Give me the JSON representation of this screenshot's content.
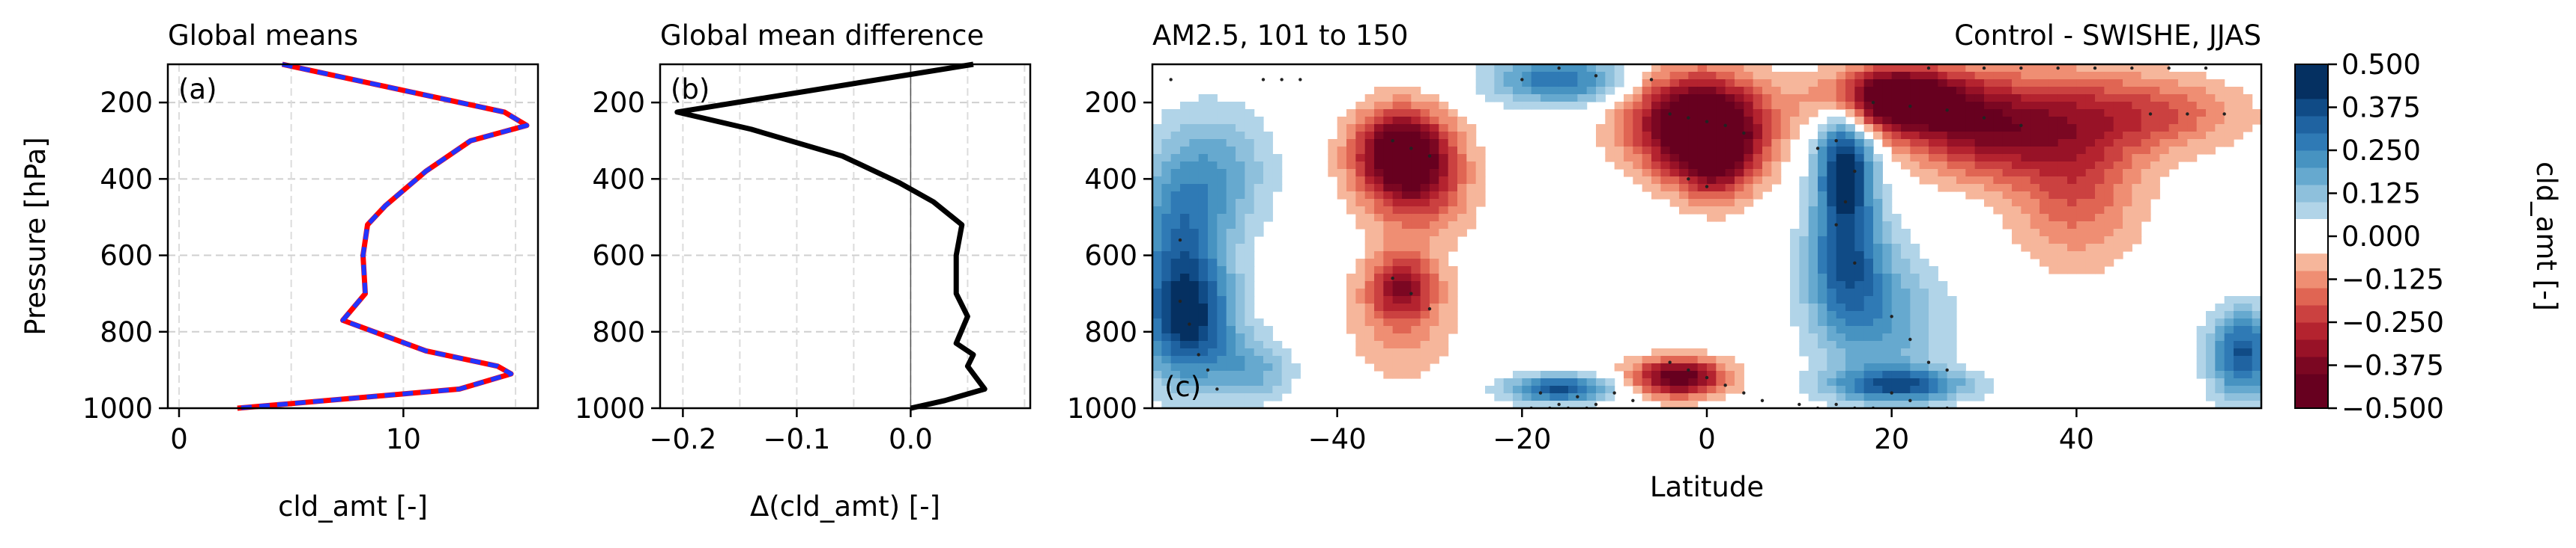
{
  "chart_data": [
    {
      "id": "a",
      "type": "line",
      "title": "Global means",
      "panel_label": "(a)",
      "xlabel": "cld_amt [-]",
      "ylabel": "Pressure [hPa]",
      "xlim": [
        -0.5,
        16
      ],
      "ylim": [
        1000,
        100
      ],
      "xticks": [
        0,
        10
      ],
      "yticks": [
        200,
        400,
        600,
        800,
        1000
      ],
      "grid": true,
      "series": [
        {
          "color": "#ff0000",
          "dash": false,
          "x": [
            4.6,
            14.5,
            15.5,
            13.0,
            11.0,
            9.2,
            8.4,
            8.2,
            8.3,
            7.3,
            11.0,
            14.2,
            14.8,
            12.5,
            2.6
          ],
          "y": [
            100,
            225,
            260,
            300,
            380,
            470,
            520,
            600,
            700,
            770,
            850,
            890,
            910,
            950,
            1000
          ]
        },
        {
          "color": "#2233ff",
          "dash": true,
          "x": [
            4.6,
            14.5,
            15.5,
            13.0,
            11.0,
            9.2,
            8.4,
            8.2,
            8.3,
            7.3,
            11.0,
            14.2,
            14.8,
            12.5,
            2.6
          ],
          "y": [
            100,
            225,
            260,
            300,
            380,
            470,
            520,
            600,
            700,
            770,
            850,
            890,
            910,
            950,
            1000
          ]
        }
      ]
    },
    {
      "id": "b",
      "type": "line",
      "title": "Global mean difference",
      "panel_label": "(b)",
      "xlabel": "Δ(cld_amt) [-]",
      "xlim": [
        -0.22,
        0.105
      ],
      "ylim": [
        1000,
        100
      ],
      "xticks": [
        -0.2,
        -0.1,
        0.0
      ],
      "xtick_labels": [
        "−0.2",
        "−0.1",
        "0.0"
      ],
      "yticks": [
        200,
        400,
        600,
        800,
        1000
      ],
      "grid": true,
      "zero_line": true,
      "series": [
        {
          "color": "#000000",
          "x": [
            0.055,
            -0.205,
            -0.14,
            -0.06,
            -0.01,
            0.02,
            0.045,
            0.04,
            0.04,
            0.05,
            0.04,
            0.055,
            0.05,
            0.065,
            0.03,
            0.0
          ],
          "y": [
            100,
            225,
            270,
            340,
            410,
            460,
            520,
            600,
            700,
            760,
            830,
            860,
            890,
            950,
            980,
            1000
          ]
        }
      ]
    },
    {
      "id": "c",
      "type": "heatmap",
      "title_left": "AM2.5, 101 to 150",
      "title_right": "Control - SWISHE, JJAS",
      "panel_label": "(c)",
      "xlabel": "Latitude",
      "xlim": [
        -60,
        60
      ],
      "ylim": [
        1000,
        100
      ],
      "xticks": [
        -40,
        -20,
        0,
        20,
        40
      ],
      "xtick_labels": [
        "−40",
        "−20",
        "0",
        "20",
        "40"
      ],
      "yticks": [
        200,
        400,
        600,
        800,
        1000
      ],
      "levels": [
        -0.5,
        -0.45,
        -0.4,
        -0.35,
        -0.3,
        -0.25,
        -0.2,
        -0.15,
        -0.1,
        -0.05,
        0,
        0.05,
        0.1,
        0.15,
        0.2,
        0.25,
        0.3,
        0.35,
        0.4,
        0.45,
        0.5
      ],
      "features": [
        {
          "lat": -57,
          "p": 560,
          "amp": 0.26,
          "slat": 3.5,
          "sp": 170
        },
        {
          "lat": -56,
          "p": 780,
          "amp": 0.34,
          "slat": 3.5,
          "sp": 110
        },
        {
          "lat": -52,
          "p": 380,
          "amp": 0.14,
          "slat": 4,
          "sp": 120
        },
        {
          "lat": -49,
          "p": 900,
          "amp": 0.16,
          "slat": 3,
          "sp": 60
        },
        {
          "lat": -33,
          "p": 330,
          "amp": -0.5,
          "slat": 3.6,
          "sp": 80
        },
        {
          "lat": -31,
          "p": 440,
          "amp": -0.18,
          "slat": 4,
          "sp": 90
        },
        {
          "lat": -33,
          "p": 680,
          "amp": -0.28,
          "slat": 2.5,
          "sp": 60
        },
        {
          "lat": -33,
          "p": 780,
          "amp": -0.12,
          "slat": 4,
          "sp": 110
        },
        {
          "lat": -16,
          "p": 140,
          "amp": 0.3,
          "slat": 5,
          "sp": 45
        },
        {
          "lat": -16,
          "p": 950,
          "amp": 0.36,
          "slat": 4,
          "sp": 25
        },
        {
          "lat": -1,
          "p": 255,
          "amp": -0.55,
          "slat": 5,
          "sp": 90
        },
        {
          "lat": 1,
          "p": 340,
          "amp": -0.3,
          "slat": 3,
          "sp": 80
        },
        {
          "lat": -3,
          "p": 920,
          "amp": -0.46,
          "slat": 3.5,
          "sp": 35
        },
        {
          "lat": 15,
          "p": 360,
          "amp": 0.44,
          "slat": 2.2,
          "sp": 120
        },
        {
          "lat": 15,
          "p": 620,
          "amp": 0.28,
          "slat": 3,
          "sp": 120
        },
        {
          "lat": 19,
          "p": 780,
          "amp": 0.18,
          "slat": 5,
          "sp": 130
        },
        {
          "lat": 21,
          "p": 940,
          "amp": 0.32,
          "slat": 5,
          "sp": 30
        },
        {
          "lat": 20,
          "p": 190,
          "amp": -0.55,
          "slat": 5,
          "sp": 60
        },
        {
          "lat": 30,
          "p": 260,
          "amp": -0.36,
          "slat": 6,
          "sp": 90
        },
        {
          "lat": 40,
          "p": 380,
          "amp": -0.22,
          "slat": 5,
          "sp": 160
        },
        {
          "lat": 48,
          "p": 230,
          "amp": -0.2,
          "slat": 7,
          "sp": 70
        },
        {
          "lat": 58,
          "p": 860,
          "amp": 0.36,
          "slat": 2.5,
          "sp": 80
        }
      ],
      "significance_dots": [
        [
          -58,
          140
        ],
        [
          -57,
          560
        ],
        [
          -57,
          720
        ],
        [
          -56,
          780
        ],
        [
          -55,
          860
        ],
        [
          -54,
          900
        ],
        [
          -53,
          950
        ],
        [
          -48,
          140
        ],
        [
          -46,
          140
        ],
        [
          -44,
          140
        ],
        [
          -34,
          300
        ],
        [
          -32,
          320
        ],
        [
          -30,
          340
        ],
        [
          -34,
          660
        ],
        [
          -32,
          700
        ],
        [
          -30,
          740
        ],
        [
          -20,
          140
        ],
        [
          -16,
          110
        ],
        [
          -12,
          130
        ],
        [
          -18,
          960
        ],
        [
          -16,
          990
        ],
        [
          -14,
          970
        ],
        [
          -12,
          990
        ],
        [
          -10,
          960
        ],
        [
          -8,
          980
        ],
        [
          -19,
          1000
        ],
        [
          -17,
          1000
        ],
        [
          -15,
          1000
        ],
        [
          -13,
          1000
        ],
        [
          -6,
          140
        ],
        [
          -4,
          230
        ],
        [
          -2,
          240
        ],
        [
          0,
          250
        ],
        [
          2,
          260
        ],
        [
          4,
          280
        ],
        [
          -2,
          400
        ],
        [
          0,
          420
        ],
        [
          -4,
          880
        ],
        [
          -2,
          900
        ],
        [
          0,
          920
        ],
        [
          2,
          940
        ],
        [
          4,
          960
        ],
        [
          6,
          980
        ],
        [
          12,
          320
        ],
        [
          14,
          300
        ],
        [
          16,
          380
        ],
        [
          15,
          460
        ],
        [
          14,
          520
        ],
        [
          16,
          620
        ],
        [
          20,
          760
        ],
        [
          22,
          820
        ],
        [
          24,
          880
        ],
        [
          26,
          900
        ],
        [
          20,
          960
        ],
        [
          22,
          980
        ],
        [
          24,
          1000
        ],
        [
          10,
          990
        ],
        [
          12,
          1000
        ],
        [
          14,
          990
        ],
        [
          16,
          1000
        ],
        [
          18,
          1000
        ],
        [
          26,
          1000
        ],
        [
          18,
          200
        ],
        [
          22,
          210
        ],
        [
          26,
          220
        ],
        [
          30,
          240
        ],
        [
          34,
          260
        ],
        [
          24,
          110
        ],
        [
          30,
          110
        ],
        [
          34,
          110
        ],
        [
          38,
          110
        ],
        [
          42,
          110
        ],
        [
          46,
          110
        ],
        [
          50,
          110
        ],
        [
          54,
          110
        ],
        [
          48,
          230
        ],
        [
          52,
          230
        ],
        [
          56,
          230
        ]
      ],
      "colorbar": {
        "label": "cld_amt [-]",
        "ticks": [
          0.5,
          0.375,
          0.25,
          0.125,
          0.0,
          -0.125,
          -0.25,
          -0.375,
          -0.5
        ],
        "tick_labels": [
          "0.500",
          "0.375",
          "0.250",
          "0.125",
          "0.000",
          "−0.125",
          "−0.250",
          "−0.375",
          "−0.500"
        ]
      },
      "colors": {
        "neg": [
          "#fddbc7",
          "#f6b69b",
          "#ef8e73",
          "#e06553",
          "#cb4140",
          "#b4232f",
          "#981227",
          "#7b0722",
          "#67001f",
          "#67001f"
        ],
        "pos": [
          "#d1e5f0",
          "#b1d4e8",
          "#8ec0dc",
          "#66a9cf",
          "#4793c1",
          "#2f7ab5",
          "#1f63a1",
          "#104b86",
          "#053061",
          "#053061"
        ],
        "zero": "#ffffff"
      }
    }
  ]
}
